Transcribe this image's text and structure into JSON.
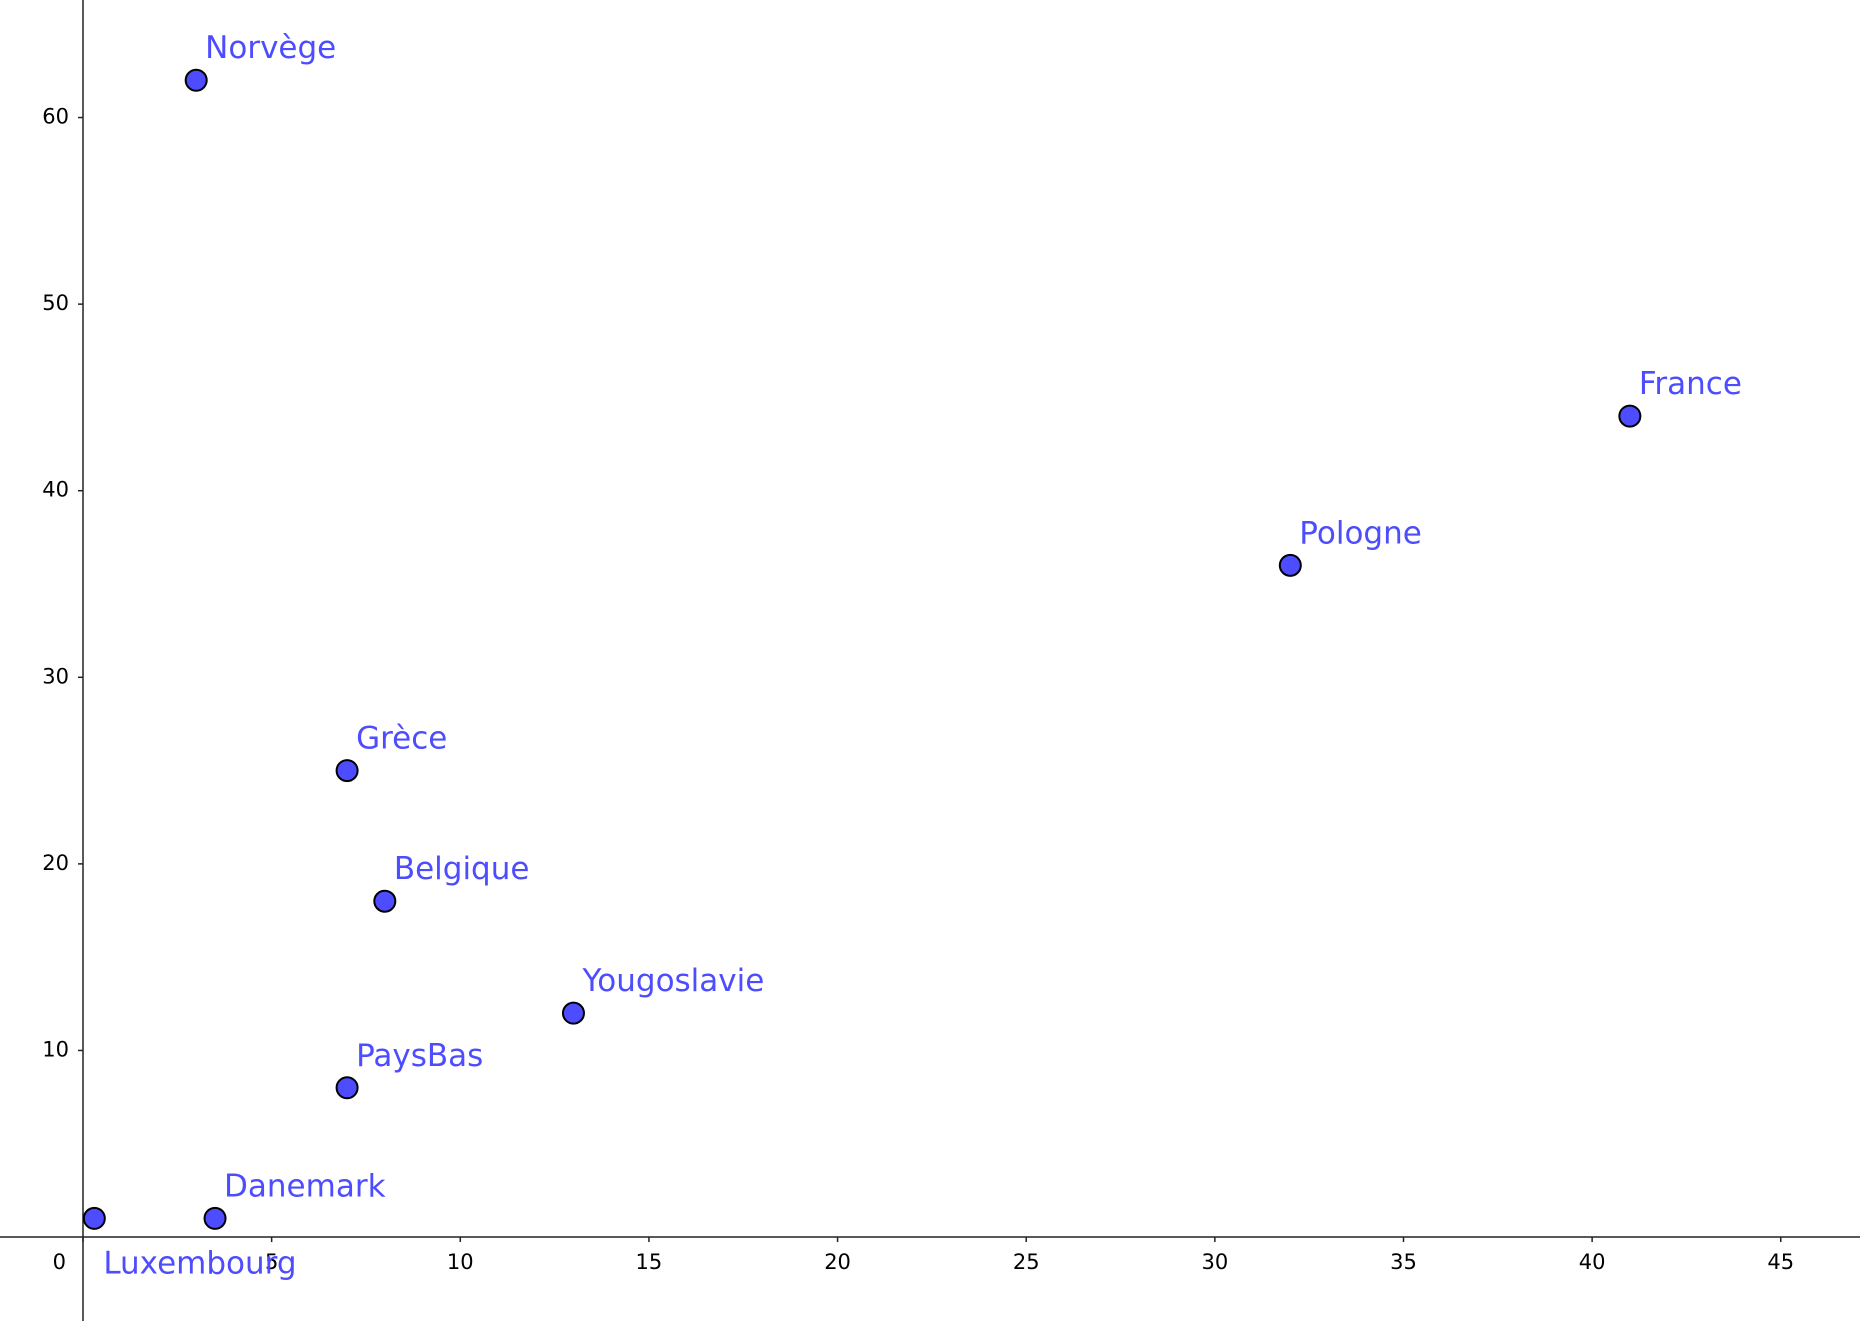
{
  "chart_data": {
    "type": "scatter",
    "labels": [
      "Norvège",
      "Luxembourg",
      "Danemark",
      "Grèce",
      "Belgique",
      "Yougoslavie",
      "PaysBas",
      "Pologne",
      "France"
    ],
    "x": [
      3,
      0.3,
      3.5,
      7,
      8,
      13,
      7,
      32,
      41
    ],
    "values": [
      62,
      1,
      1,
      25,
      18,
      12,
      8,
      36,
      44
    ],
    "color": "#4d4dff",
    "xlim": [
      -2.2,
      47.1
    ],
    "ylim": [
      -4.5,
      66.3
    ],
    "xticks": [
      0,
      5,
      10,
      15,
      20,
      25,
      30,
      35,
      40,
      45
    ],
    "yticks": [
      10,
      20,
      30,
      40,
      50,
      60
    ],
    "grid": false
  }
}
